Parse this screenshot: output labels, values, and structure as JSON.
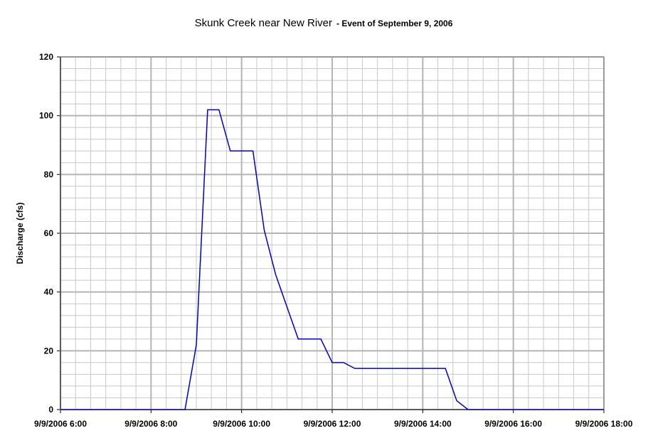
{
  "chart_data": {
    "type": "line",
    "title": "Skunk Creek near New River",
    "subtitle": "- Event of September 9, 2006",
    "y_label": "Discharge (cfs)",
    "x": [
      "9/9/2006 6:00",
      "9/9/2006 8:45",
      "9/9/2006 9:00",
      "9/9/2006 9:15",
      "9/9/2006 9:30",
      "9/9/2006 9:45",
      "9/9/2006 10:15",
      "9/9/2006 10:30",
      "9/9/2006 10:45",
      "9/9/2006 11:15",
      "9/9/2006 11:45",
      "9/9/2006 12:00",
      "9/9/2006 12:15",
      "9/9/2006 12:30",
      "9/9/2006 14:30",
      "9/9/2006 14:45",
      "9/9/2006 15:00",
      "9/9/2006 18:00"
    ],
    "series": [
      {
        "name": "Discharge",
        "color": "#0000cc",
        "values": [
          0,
          0,
          22,
          102,
          102,
          88,
          88,
          61,
          46,
          24,
          24,
          16,
          16,
          14,
          14,
          3,
          0,
          0
        ]
      }
    ],
    "xlim": [
      "9/9/2006 6:00",
      "9/9/2006 18:00"
    ],
    "xticks": [
      "9/9/2006 6:00",
      "9/9/2006 8:00",
      "9/9/2006 10:00",
      "9/9/2006 12:00",
      "9/9/2006 14:00",
      "9/9/2006 16:00",
      "9/9/2006 18:00"
    ],
    "ylim": [
      0,
      120
    ],
    "yticks": [
      0,
      20,
      40,
      60,
      80,
      100,
      120
    ],
    "grid": true,
    "minor_grid": true
  }
}
